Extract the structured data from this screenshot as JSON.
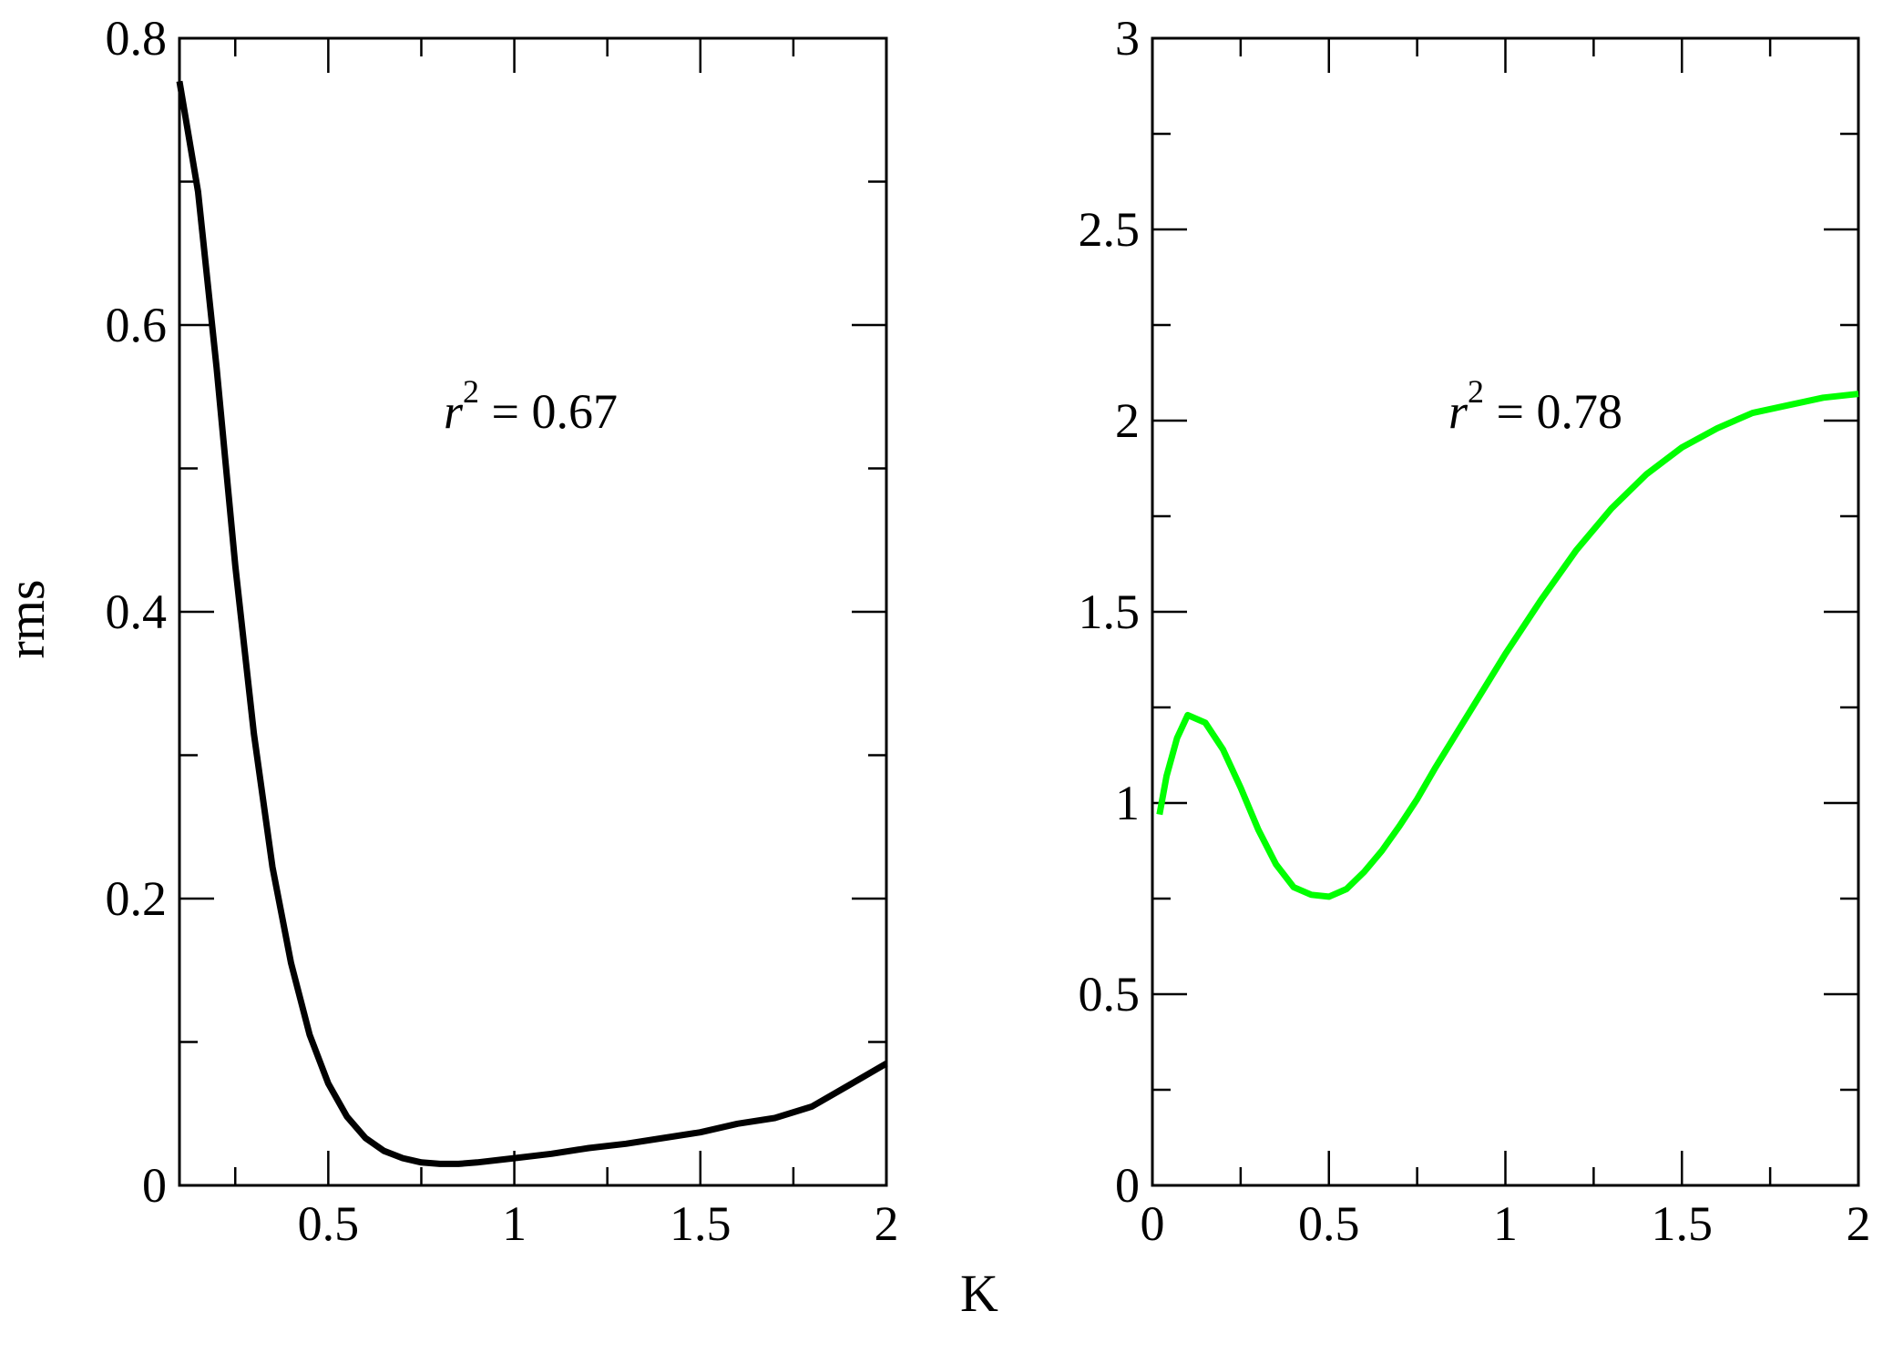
{
  "chart_data": [
    {
      "type": "line",
      "xlabel": "K",
      "ylabel": "rms",
      "xlim": [
        0.1,
        2.0
      ],
      "ylim": [
        0,
        0.8
      ],
      "x_ticks": [
        0.5,
        1,
        1.5,
        2
      ],
      "x_tick_labels": [
        "0.5",
        "1",
        "1.5",
        "2"
      ],
      "y_ticks": [
        0,
        0.2,
        0.4,
        0.6,
        0.8
      ],
      "y_tick_labels": [
        "0",
        "0.2",
        "0.4",
        "0.6",
        "0.8"
      ],
      "annotation": {
        "base": "r",
        "exponent": "2",
        "rest": " = 0.67"
      },
      "grid": false,
      "series": [
        {
          "color": "#000000",
          "x": [
            0.1,
            0.15,
            0.2,
            0.25,
            0.3,
            0.35,
            0.4,
            0.45,
            0.5,
            0.55,
            0.6,
            0.65,
            0.7,
            0.75,
            0.8,
            0.85,
            0.9,
            1.0,
            1.1,
            1.2,
            1.3,
            1.4,
            1.5,
            1.6,
            1.7,
            1.8,
            1.9,
            2.0
          ],
          "y": [
            0.77,
            0.693,
            0.57,
            0.432,
            0.315,
            0.222,
            0.155,
            0.105,
            0.071,
            0.048,
            0.033,
            0.024,
            0.019,
            0.016,
            0.015,
            0.015,
            0.016,
            0.019,
            0.022,
            0.026,
            0.029,
            0.033,
            0.037,
            0.043,
            0.047,
            0.055,
            0.07,
            0.085
          ]
        }
      ]
    },
    {
      "type": "line",
      "xlabel": "K",
      "ylabel": "",
      "xlim": [
        0,
        2.0
      ],
      "ylim": [
        0,
        3
      ],
      "x_ticks": [
        0,
        0.5,
        1,
        1.5,
        2
      ],
      "x_tick_labels": [
        "0",
        "0.5",
        "1",
        "1.5",
        "2"
      ],
      "y_ticks": [
        0,
        0.5,
        1,
        1.5,
        2,
        2.5,
        3
      ],
      "y_tick_labels": [
        "0",
        "0.5",
        "1",
        "1.5",
        "2",
        "2.5",
        "3"
      ],
      "annotation": {
        "base": "r",
        "exponent": "2",
        "rest": " = 0.78"
      },
      "grid": false,
      "series": [
        {
          "color": "#00ff00",
          "x": [
            0.02,
            0.04,
            0.07,
            0.1,
            0.15,
            0.2,
            0.25,
            0.3,
            0.35,
            0.4,
            0.45,
            0.5,
            0.55,
            0.6,
            0.65,
            0.7,
            0.75,
            0.8,
            0.9,
            1.0,
            1.1,
            1.2,
            1.3,
            1.4,
            1.5,
            1.6,
            1.7,
            1.8,
            1.9,
            2.0
          ],
          "y": [
            0.97,
            1.07,
            1.17,
            1.23,
            1.21,
            1.14,
            1.04,
            0.93,
            0.84,
            0.78,
            0.76,
            0.755,
            0.775,
            0.82,
            0.875,
            0.94,
            1.01,
            1.09,
            1.24,
            1.39,
            1.53,
            1.66,
            1.77,
            1.86,
            1.93,
            1.98,
            2.02,
            2.04,
            2.06,
            2.07
          ]
        }
      ]
    }
  ],
  "shared_xlabel": "K"
}
